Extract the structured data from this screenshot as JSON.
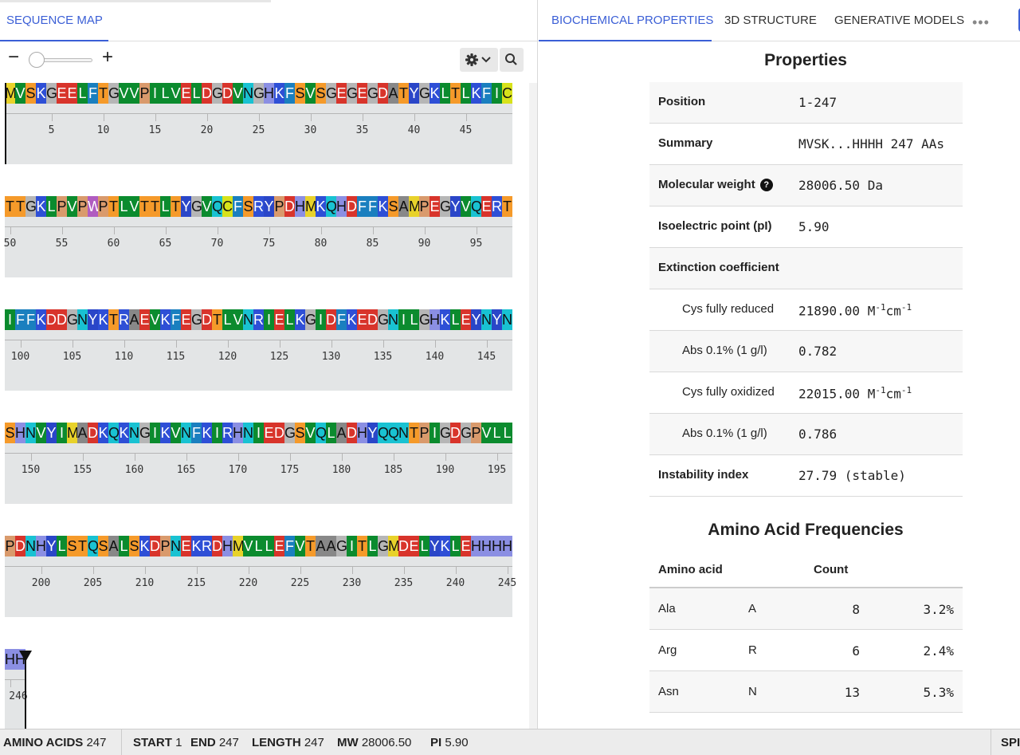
{
  "left_panel": {
    "tab": "SEQUENCE MAP",
    "zoom": {
      "minus": "−",
      "plus": "+"
    },
    "sequence": "MVSKGEELFTGVVPILVELDGDVNGHKFSVSGEGEGDATYGKLTLKFICTTGKLPVPWPTLVTTLTYGVQCFSRYPDHMKQHDFFKSAMPEGYVQERTIFFKDDGNYKTRAEVKFEGDTLVNRIELKGIDFKEDGNILGHKLEYNYNSHNVYIMADKQKNGIKVNFKIRHNIEDGSVQLADHYQQNTPIGDGPVLLPDNHYLSTQSALSKDPNEKRDHMVLLEFVTAAGITLGMDELYKLEHHHHHH",
    "rows": [
      {
        "start": 1,
        "end": 49,
        "ticks": [
          "5",
          "10",
          "15",
          "20",
          "25",
          "30",
          "35",
          "40",
          "45"
        ]
      },
      {
        "start": 50,
        "end": 98,
        "ticks": [
          "50",
          "55",
          "60",
          "65",
          "70",
          "75",
          "80",
          "85",
          "90",
          "95"
        ]
      },
      {
        "start": 99,
        "end": 147,
        "ticks": [
          "100",
          "105",
          "110",
          "115",
          "120",
          "125",
          "130",
          "135",
          "140",
          "145"
        ]
      },
      {
        "start": 148,
        "end": 196,
        "ticks": [
          "150",
          "155",
          "160",
          "165",
          "170",
          "175",
          "180",
          "185",
          "190",
          "195"
        ]
      },
      {
        "start": 197,
        "end": 245,
        "ticks": [
          "200",
          "205",
          "210",
          "215",
          "220",
          "225",
          "230",
          "235",
          "240",
          "245"
        ]
      },
      {
        "start": 246,
        "end": 247,
        "ticks": [
          "246"
        ]
      }
    ],
    "residue_colors": {
      "M": "#e8d22a",
      "V": "#0b8b2e",
      "S": "#f59a2a",
      "K": "#2e4fd6",
      "G": "#b6b6b6",
      "E": "#d8342b",
      "L": "#0b8b2e",
      "F": "#1a7fbf",
      "T": "#f59a2a",
      "P": "#d99a6c",
      "I": "#0b8b2e",
      "D": "#d8342b",
      "N": "#19c2d2",
      "H": "#8b8fe3",
      "A": "#888888",
      "Y": "#2a46c8",
      "C": "#d8e21a",
      "W": "#b05cc0",
      "Q": "#19c2d2",
      "R": "#2e4fd6"
    },
    "white_text_residues": [
      "V",
      "K",
      "E",
      "L",
      "F",
      "I",
      "D",
      "Y",
      "W",
      "R"
    ]
  },
  "right_panel": {
    "tabs": [
      "BIOCHEMICAL PROPERTIES",
      "3D STRUCTURE",
      "GENERATIVE MODELS"
    ],
    "more": "•••",
    "properties_title": "Properties",
    "properties": [
      {
        "label": "Position",
        "value": "1-247"
      },
      {
        "label": "Summary",
        "value": "MVSK...HHHH 247 AAs"
      },
      {
        "label": "Molecular weight",
        "value": "28006.50 Da",
        "help": "?"
      },
      {
        "label": "Isoelectric point (pI)",
        "value": "5.90"
      },
      {
        "label": "Extinction coefficient",
        "value": ""
      },
      {
        "label": "Cys fully reduced",
        "value": "21890.00 M",
        "sup1": "-1",
        "mid": "cm",
        "sup2": "-1"
      },
      {
        "label": "Abs 0.1% (1 g/l)",
        "value": "0.782"
      },
      {
        "label": "Cys fully oxidized",
        "value": "22015.00 M",
        "sup1": "-1",
        "mid": "cm",
        "sup2": "-1"
      },
      {
        "label": "Abs 0.1% (1 g/l)",
        "value": "0.786"
      },
      {
        "label": "Instability index",
        "value": "27.79 (stable)"
      }
    ],
    "aa_title": "Amino Acid Frequencies",
    "aa_headers": {
      "aa": "Amino acid",
      "count": "Count"
    },
    "aa_rows": [
      {
        "name": "Ala",
        "code": "A",
        "count": "8",
        "pct": "3.2%"
      },
      {
        "name": "Arg",
        "code": "R",
        "count": "6",
        "pct": "2.4%"
      },
      {
        "name": "Asn",
        "code": "N",
        "count": "13",
        "pct": "5.3%"
      }
    ]
  },
  "status_bar": {
    "amino_acids_label": "AMINO ACIDS",
    "amino_acids": "247",
    "start_label": "START",
    "start": "1",
    "end_label": "END",
    "end": "247",
    "length_label": "LENGTH",
    "length": "247",
    "mw_label": "MW",
    "mw": "28006.50",
    "pi_label": "PI",
    "pi": "5.90",
    "right_label": "SPI"
  }
}
